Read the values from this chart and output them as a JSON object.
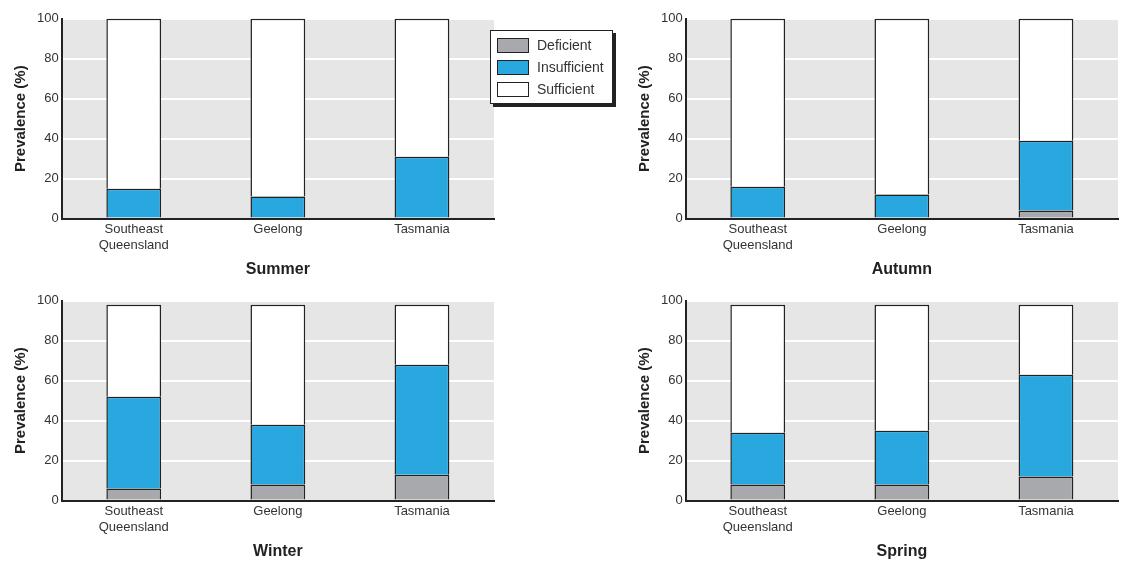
{
  "chart_data": [
    {
      "type": "bar",
      "xlabel": "Summer",
      "ylabel": "Prevalence (%)",
      "categories": [
        "Southeast Queensland",
        "Geelong",
        "Tasmania"
      ],
      "stacked": true,
      "ylim": [
        0,
        100
      ],
      "yticks": [
        0,
        20,
        40,
        60,
        80,
        100
      ],
      "grid": "y",
      "legend": "right",
      "series": [
        {
          "name": "Deficient",
          "color": "#a7a9ac",
          "values": [
            0,
            0,
            0
          ]
        },
        {
          "name": "Insufficient",
          "color": "#29a8e0",
          "values": [
            15,
            11,
            31
          ]
        },
        {
          "name": "Sufficient",
          "color": "#ffffff",
          "values": [
            85,
            89,
            69
          ]
        }
      ]
    },
    {
      "type": "bar",
      "xlabel": "Autumn",
      "ylabel": "Prevalence (%)",
      "categories": [
        "Southeast Queensland",
        "Geelong",
        "Tasmania"
      ],
      "stacked": true,
      "ylim": [
        0,
        100
      ],
      "yticks": [
        0,
        20,
        40,
        60,
        80,
        100
      ],
      "grid": "y",
      "series": [
        {
          "color": "#a7a9ac",
          "values": [
            0,
            0,
            4
          ]
        },
        {
          "color": "#29a8e0",
          "values": [
            16,
            12,
            35
          ]
        },
        {
          "color": "#ffffff",
          "values": [
            84,
            88,
            61
          ]
        }
      ]
    },
    {
      "type": "bar",
      "xlabel": "Winter",
      "ylabel": "Prevalence (%)",
      "categories": [
        "Southeast Queensland",
        "Geelong",
        "Tasmania"
      ],
      "stacked": true,
      "ylim": [
        0,
        100
      ],
      "yticks": [
        0,
        20,
        40,
        60,
        80,
        100
      ],
      "grid": "y",
      "series": [
        {
          "color": "#a7a9ac",
          "values": [
            6,
            8,
            13
          ]
        },
        {
          "color": "#29a8e0",
          "values": [
            46,
            30,
            55
          ]
        },
        {
          "color": "#ffffff",
          "values": [
            46,
            60,
            30
          ]
        }
      ]
    },
    {
      "type": "bar",
      "xlabel": "Spring",
      "ylabel": "Prevalence (%)",
      "categories": [
        "Southeast Queensland",
        "Geelong",
        "Tasmania"
      ],
      "stacked": true,
      "ylim": [
        0,
        100
      ],
      "yticks": [
        0,
        20,
        40,
        60,
        80,
        100
      ],
      "grid": "y",
      "series": [
        {
          "color": "#a7a9ac",
          "values": [
            8,
            8,
            12
          ]
        },
        {
          "color": "#29a8e0",
          "values": [
            26,
            27,
            51
          ]
        },
        {
          "color": "#ffffff",
          "values": [
            64,
            63,
            35
          ]
        }
      ]
    }
  ]
}
